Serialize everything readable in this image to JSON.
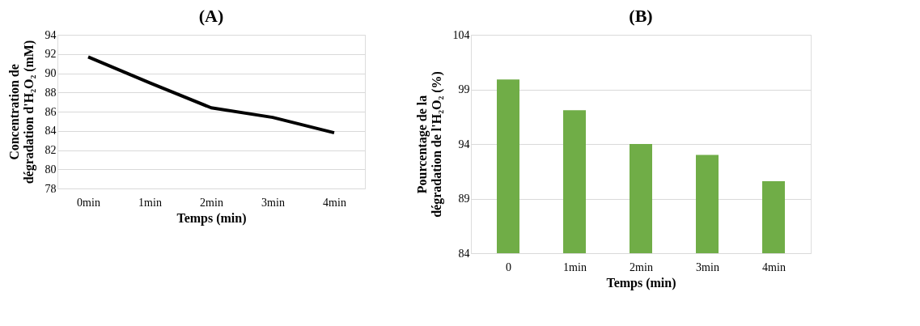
{
  "chart_data": [
    {
      "type": "line",
      "title": "(A)",
      "xlabel": "Temps (min)",
      "ylabel": "Concentration de\ndégradation  d'H₂O₂ (mM)",
      "categories": [
        "0min",
        "1min",
        "2min",
        "3min",
        "4min"
      ],
      "series": [
        {
          "color": "#000000",
          "values": [
            91.7,
            89.0,
            86.4,
            85.4,
            83.8
          ]
        }
      ],
      "ylim": [
        78,
        94
      ],
      "yticks": [
        78,
        80,
        82,
        84,
        86,
        88,
        90,
        92,
        94
      ],
      "grid": "y",
      "marker": "none",
      "line_style": "solid"
    },
    {
      "type": "bar",
      "title": "(B)",
      "xlabel": "Temps (min)",
      "ylabel": "Pourcentage de la\ndégradation  de  l'H₂O₂ (%)",
      "categories": [
        "0",
        "1min",
        "2min",
        "3min",
        "4min"
      ],
      "series": [
        {
          "color": "#70ad47",
          "values": [
            99.9,
            97.1,
            94.0,
            93.0,
            90.6
          ]
        }
      ],
      "ylim": [
        84,
        104
      ],
      "yticks": [
        84,
        89,
        94,
        99,
        104
      ],
      "grid": "y"
    }
  ]
}
